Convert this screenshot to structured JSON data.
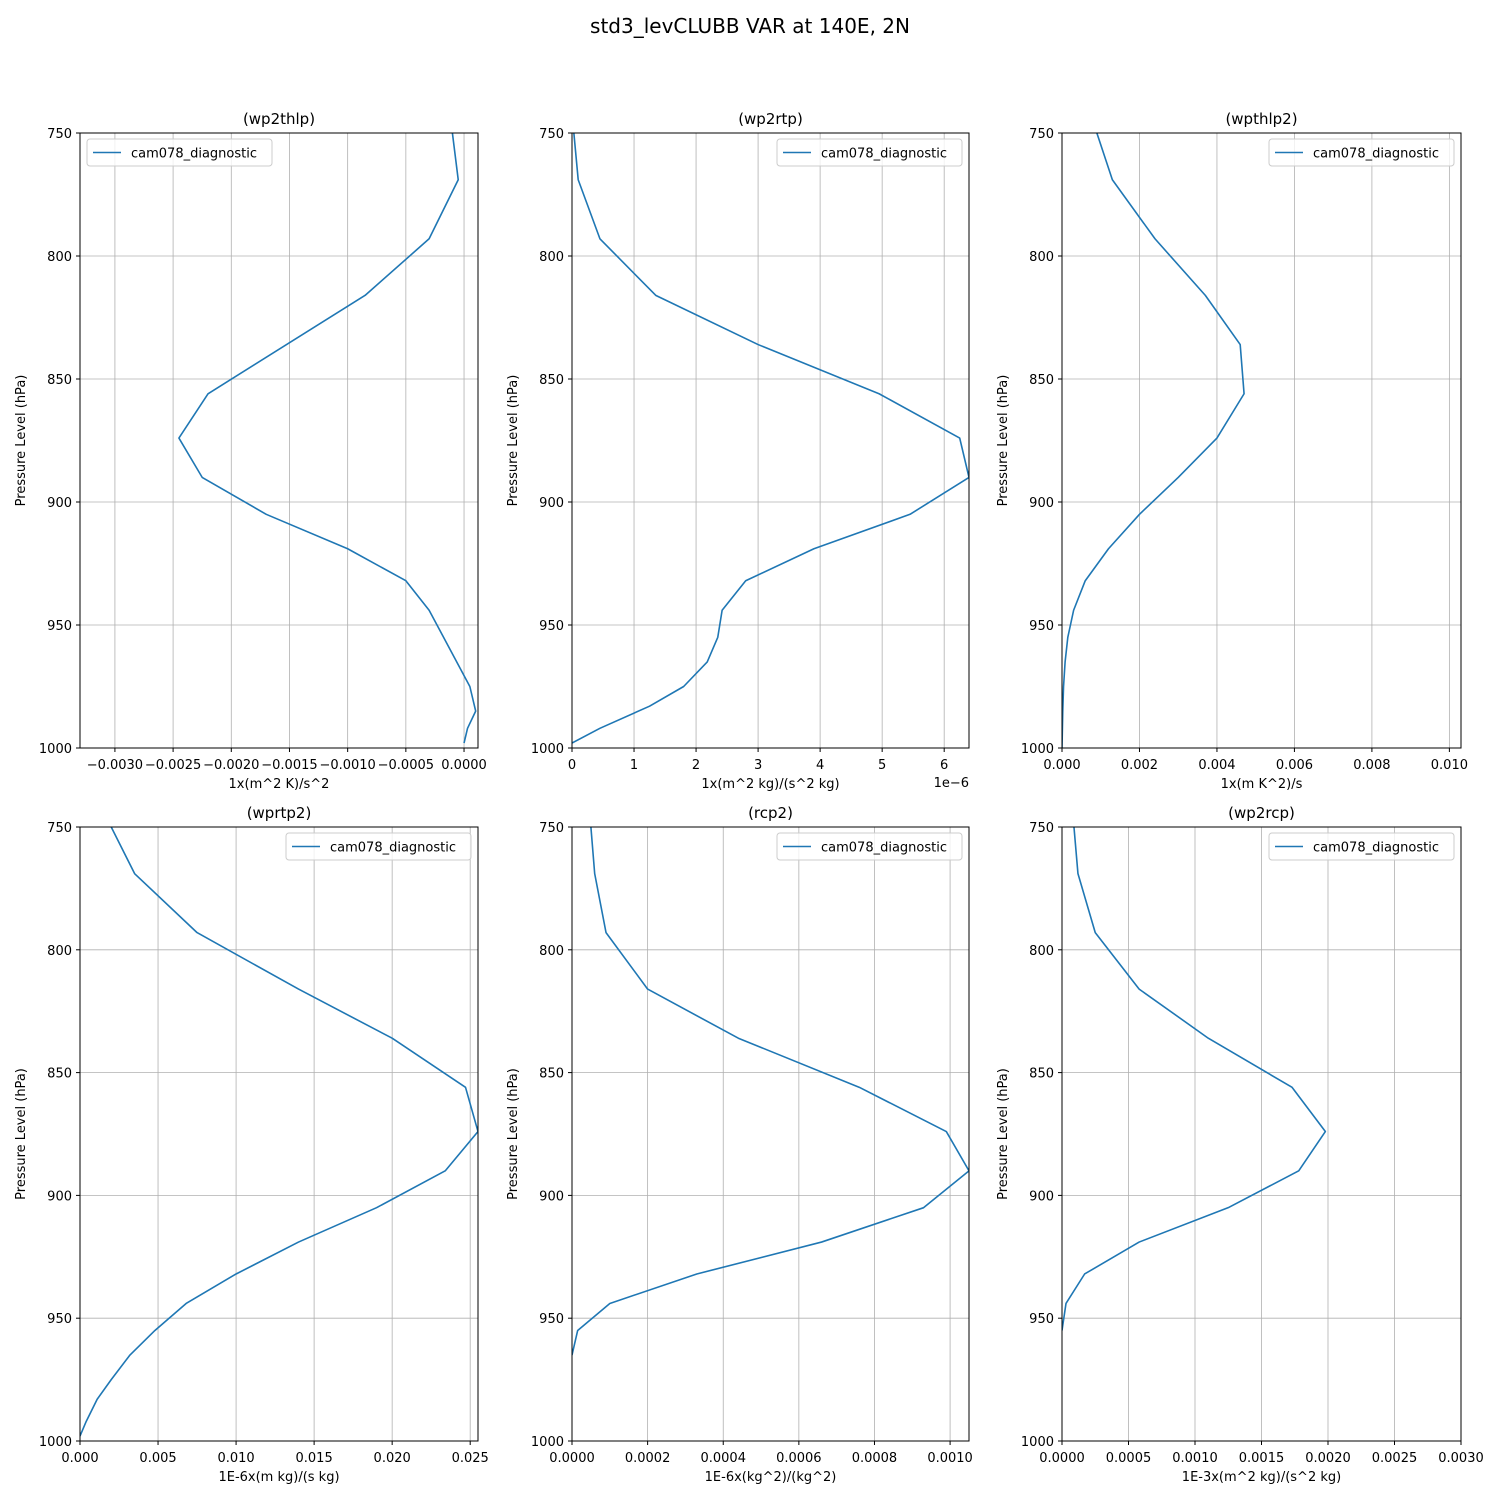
{
  "figure": {
    "title": "std3_levCLUBB VAR at 140E, 2N"
  },
  "chart_data": [
    {
      "type": "line",
      "title": "(wp2thlp)",
      "xlabel": "1x(m^2 K)/s^2",
      "ylabel": "Pressure Level (hPa)",
      "x_offset_text": "",
      "xlim": [
        -0.0033,
        0.00012
      ],
      "ylim": [
        1000,
        750
      ],
      "xticks": [
        -0.003,
        -0.0025,
        -0.002,
        -0.0015,
        -0.001,
        -0.0005,
        0.0
      ],
      "xtick_labels": [
        "−0.0030",
        "−0.0025",
        "−0.0020",
        "−0.0015",
        "−0.0010",
        "−0.0005",
        "0.0000"
      ],
      "yticks": [
        750,
        800,
        850,
        900,
        950,
        1000
      ],
      "ytick_labels": [
        "750",
        "800",
        "850",
        "900",
        "950",
        "1000"
      ],
      "grid": true,
      "legend_position": "upper-left",
      "series": [
        {
          "name": "cam078_diagnostic",
          "color": "#1f77b4",
          "x": [
            -0.0001,
            -5e-05,
            -0.0003,
            -0.00085,
            -0.0022,
            -0.00245,
            -0.00225,
            -0.0017,
            -0.001,
            -0.0005,
            -0.0003,
            5e-05,
            0.0001,
            3e-05,
            0.0
          ],
          "y": [
            750,
            769,
            793,
            816,
            856,
            874,
            890,
            905,
            919,
            932,
            944,
            975,
            985,
            992,
            998
          ]
        }
      ]
    },
    {
      "type": "line",
      "title": "(wp2rtp)",
      "xlabel": "1x(m^2 kg)/(s^2 kg)",
      "ylabel": "Pressure Level (hPa)",
      "x_offset_text": "1e−6",
      "xlim": [
        0,
        6.4e-06
      ],
      "ylim": [
        1000,
        750
      ],
      "xticks": [
        0,
        1e-06,
        2e-06,
        3e-06,
        4e-06,
        5e-06,
        6e-06
      ],
      "xtick_labels": [
        "0",
        "1",
        "2",
        "3",
        "4",
        "5",
        "6"
      ],
      "yticks": [
        750,
        800,
        850,
        900,
        950,
        1000
      ],
      "ytick_labels": [
        "750",
        "800",
        "850",
        "900",
        "950",
        "1000"
      ],
      "grid": true,
      "legend_position": "upper-right",
      "series": [
        {
          "name": "cam078_diagnostic",
          "color": "#1f77b4",
          "x": [
            3e-08,
            1e-07,
            4.5e-07,
            1.35e-06,
            3e-06,
            4.95e-06,
            6.25e-06,
            6.4e-06,
            5.45e-06,
            3.9e-06,
            2.8e-06,
            2.42e-06,
            2.35e-06,
            2.18e-06,
            1.8e-06,
            1.25e-06,
            4.5e-07,
            0.0
          ],
          "y": [
            750,
            769,
            793,
            816,
            836,
            856,
            874,
            890,
            905,
            919,
            932,
            944,
            955,
            965,
            975,
            983,
            992,
            998
          ]
        }
      ]
    },
    {
      "type": "line",
      "title": "(wpthlp2)",
      "xlabel": "1x(m K^2)/s",
      "ylabel": "Pressure Level (hPa)",
      "x_offset_text": "",
      "xlim": [
        0,
        0.0103
      ],
      "ylim": [
        1000,
        750
      ],
      "xticks": [
        0,
        0.002,
        0.004,
        0.006,
        0.008,
        0.01
      ],
      "xtick_labels": [
        "0.000",
        "0.002",
        "0.004",
        "0.006",
        "0.008",
        "0.010"
      ],
      "yticks": [
        750,
        800,
        850,
        900,
        950,
        1000
      ],
      "ytick_labels": [
        "750",
        "800",
        "850",
        "900",
        "950",
        "1000"
      ],
      "grid": true,
      "legend_position": "upper-right",
      "series": [
        {
          "name": "cam078_diagnostic",
          "color": "#1f77b4",
          "x": [
            0.0009,
            0.0013,
            0.0024,
            0.0037,
            0.0046,
            0.0047,
            0.004,
            0.003,
            0.002,
            0.0012,
            0.0006,
            0.0003,
            0.00015,
            8e-05,
            4e-05,
            2e-05,
            0.0
          ],
          "y": [
            750,
            769,
            793,
            816,
            836,
            856,
            874,
            890,
            905,
            919,
            932,
            944,
            955,
            965,
            975,
            985,
            1000
          ]
        }
      ]
    },
    {
      "type": "line",
      "title": "(wprtp2)",
      "xlabel": "1E-6x(m kg)/(s kg)",
      "ylabel": "Pressure Level (hPa)",
      "x_offset_text": "",
      "xlim": [
        0,
        0.0255
      ],
      "ylim": [
        1000,
        750
      ],
      "xticks": [
        0,
        0.005,
        0.01,
        0.015,
        0.02,
        0.025
      ],
      "xtick_labels": [
        "0.000",
        "0.005",
        "0.010",
        "0.015",
        "0.020",
        "0.025"
      ],
      "yticks": [
        750,
        800,
        850,
        900,
        950,
        1000
      ],
      "ytick_labels": [
        "750",
        "800",
        "850",
        "900",
        "950",
        "1000"
      ],
      "grid": true,
      "legend_position": "upper-right",
      "series": [
        {
          "name": "cam078_diagnostic",
          "color": "#1f77b4",
          "x": [
            0.002,
            0.0035,
            0.0075,
            0.014,
            0.02,
            0.0247,
            0.0255,
            0.0234,
            0.019,
            0.014,
            0.01,
            0.0068,
            0.0048,
            0.0032,
            0.002,
            0.0011,
            0.0004,
            0.0
          ],
          "y": [
            750,
            769,
            793,
            816,
            836,
            856,
            874,
            890,
            905,
            919,
            932,
            944,
            955,
            965,
            975,
            983,
            992,
            998
          ]
        }
      ]
    },
    {
      "type": "line",
      "title": "(rcp2)",
      "xlabel": "1E-6x(kg^2)/(kg^2)",
      "ylabel": "Pressure Level (hPa)",
      "x_offset_text": "",
      "xlim": [
        0,
        0.00105
      ],
      "ylim": [
        1000,
        750
      ],
      "xticks": [
        0,
        0.0002,
        0.0004,
        0.0006,
        0.0008,
        0.001
      ],
      "xtick_labels": [
        "0.0000",
        "0.0002",
        "0.0004",
        "0.0006",
        "0.0008",
        "0.0010"
      ],
      "yticks": [
        750,
        800,
        850,
        900,
        950,
        1000
      ],
      "ytick_labels": [
        "750",
        "800",
        "850",
        "900",
        "950",
        "1000"
      ],
      "grid": true,
      "legend_position": "upper-right",
      "series": [
        {
          "name": "cam078_diagnostic",
          "color": "#1f77b4",
          "x": [
            5e-05,
            6e-05,
            9e-05,
            0.0002,
            0.00044,
            0.00076,
            0.00099,
            0.00105,
            0.00093,
            0.00066,
            0.00033,
            0.0001,
            1.5e-05,
            0.0
          ],
          "y": [
            750,
            769,
            793,
            816,
            836,
            856,
            874,
            890,
            905,
            919,
            932,
            944,
            955,
            965
          ]
        }
      ]
    },
    {
      "type": "line",
      "title": "(wp2rcp)",
      "xlabel": "1E-3x(m^2 kg)/(s^2 kg)",
      "ylabel": "Pressure Level (hPa)",
      "x_offset_text": "",
      "xlim": [
        0,
        0.003
      ],
      "ylim": [
        1000,
        750
      ],
      "xticks": [
        0,
        0.0005,
        0.001,
        0.0015,
        0.002,
        0.0025,
        0.003
      ],
      "xtick_labels": [
        "0.0000",
        "0.0005",
        "0.0010",
        "0.0015",
        "0.0020",
        "0.0025",
        "0.0030"
      ],
      "yticks": [
        750,
        800,
        850,
        900,
        950,
        1000
      ],
      "ytick_labels": [
        "750",
        "800",
        "850",
        "900",
        "950",
        "1000"
      ],
      "grid": true,
      "legend_position": "upper-right",
      "series": [
        {
          "name": "cam078_diagnostic",
          "color": "#1f77b4",
          "x": [
            9e-05,
            0.00012,
            0.00025,
            0.00058,
            0.0011,
            0.00173,
            0.00198,
            0.00178,
            0.00125,
            0.00058,
            0.00017,
            3e-05,
            0.0
          ],
          "y": [
            750,
            769,
            793,
            816,
            836,
            856,
            874,
            890,
            905,
            919,
            932,
            944,
            955
          ]
        }
      ]
    }
  ]
}
